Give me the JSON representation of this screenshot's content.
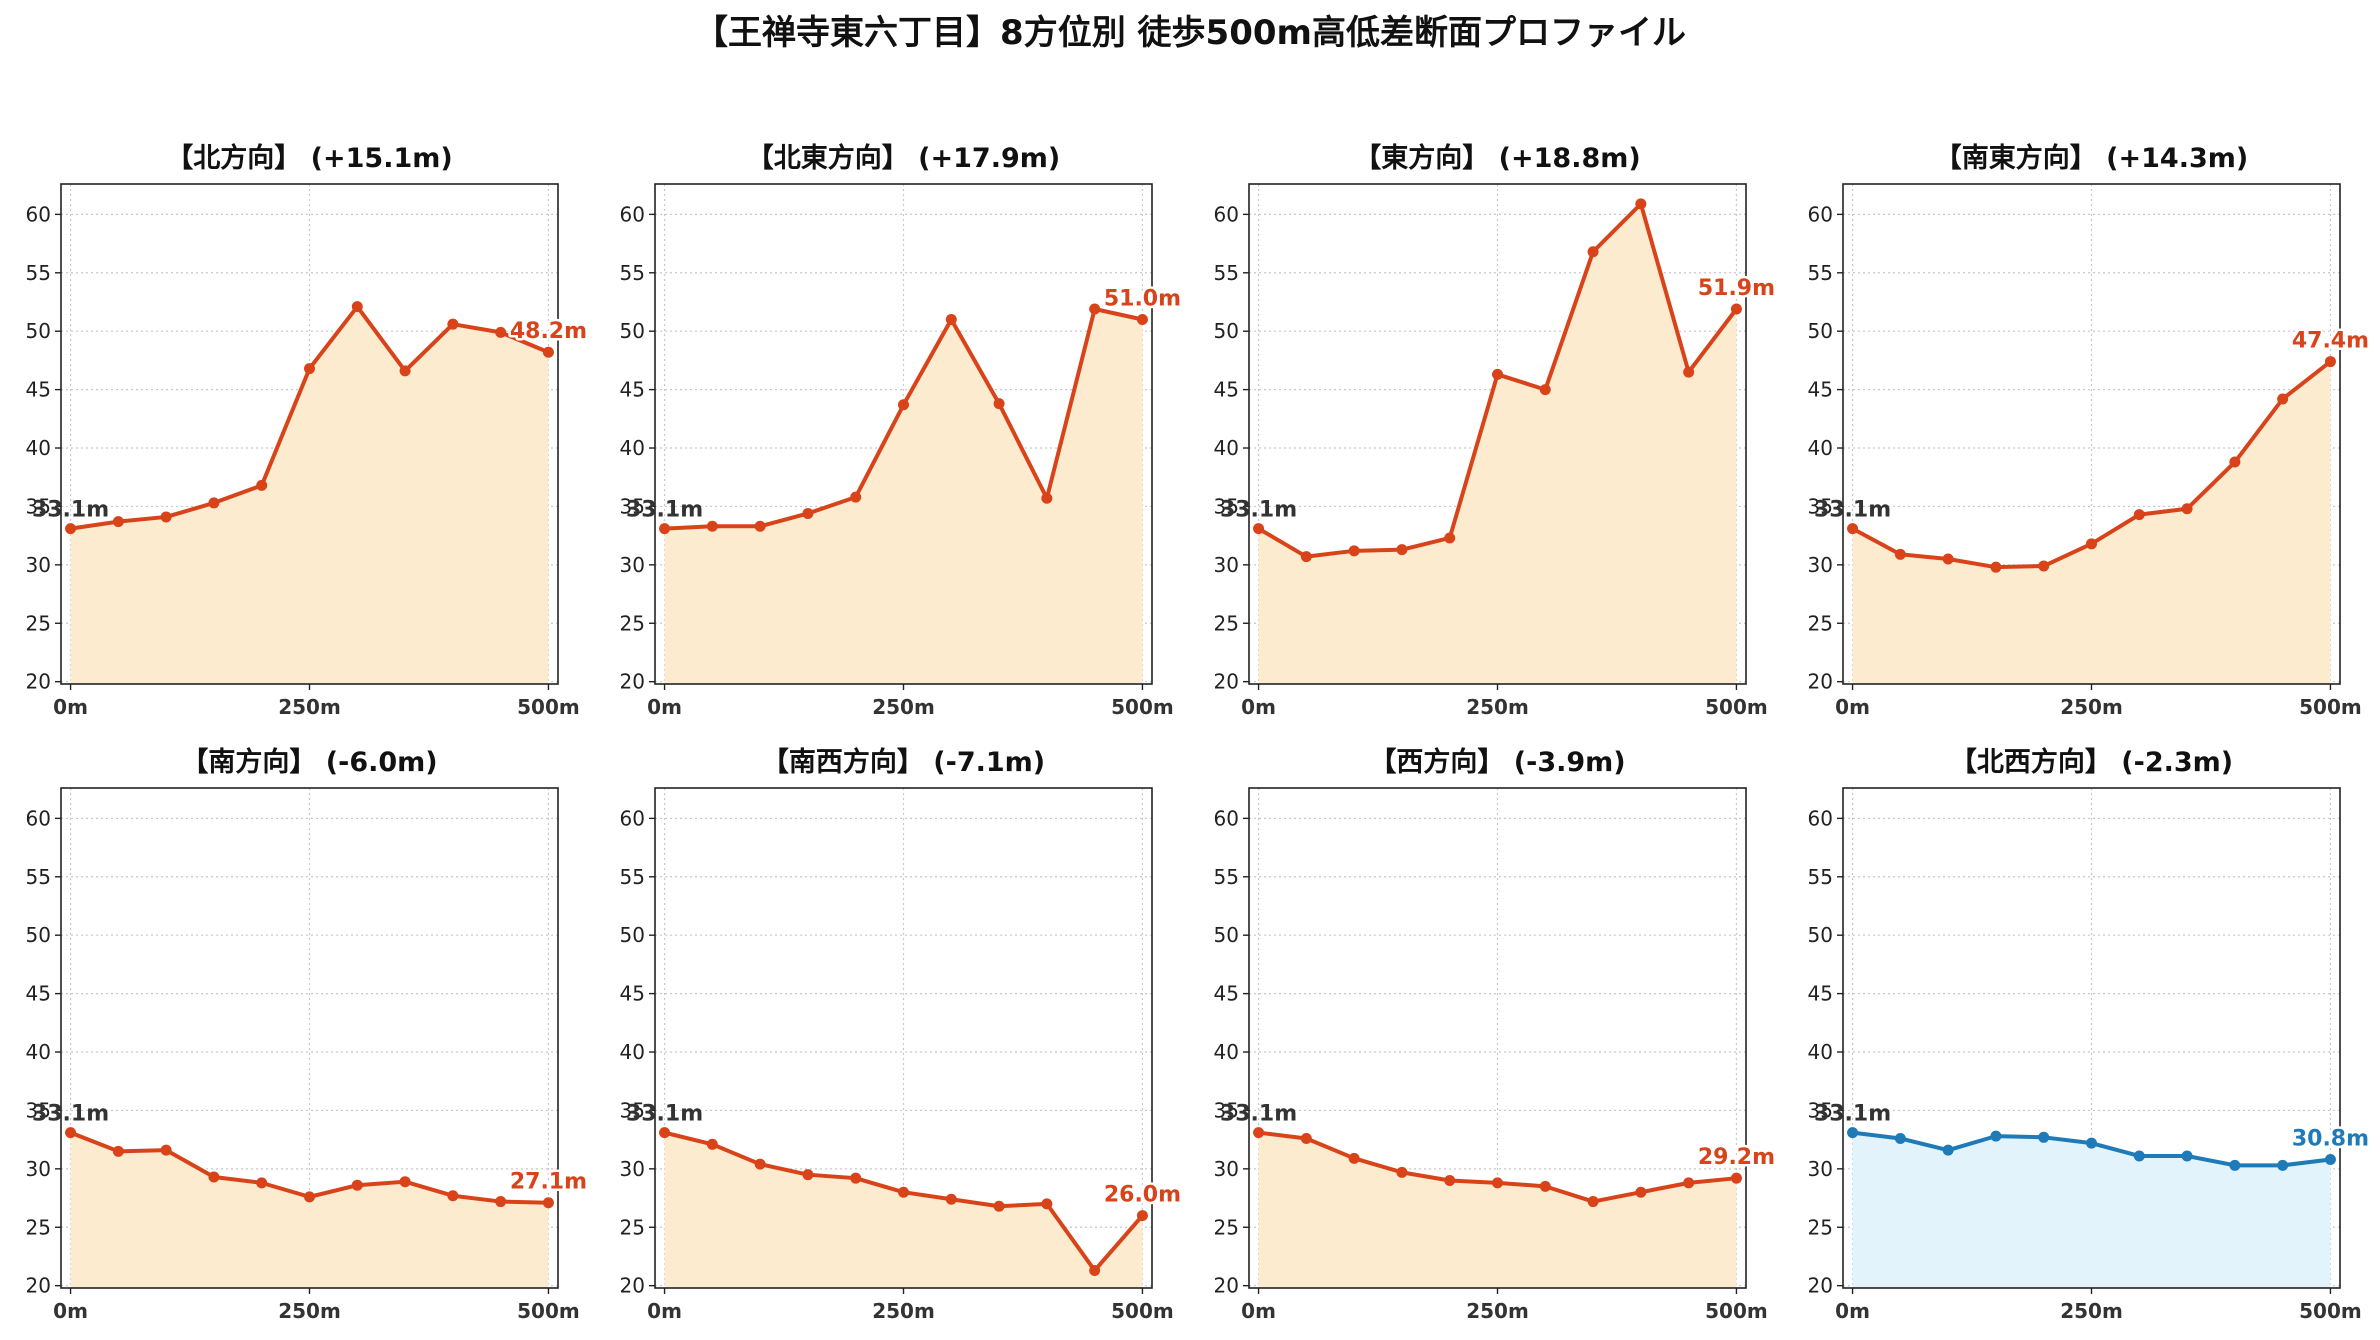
{
  "title": "【王禅寺東六丁目】8方位別 徒歩500m高低差断面プロファイル",
  "colors": {
    "rise_line": "#d9431a",
    "rise_fill": "#fdebd0",
    "flat_line": "#1f7ab8",
    "flat_fill": "#e3f3fb",
    "start_label": "#333333",
    "grid": "#c8c8c8"
  },
  "chart_data": [
    {
      "type": "area",
      "title": "【北方向】 (+15.1m)",
      "start_label": "33.1m",
      "end_label": "48.2m",
      "color_scheme": "warm",
      "x": [
        0,
        50,
        100,
        150,
        200,
        250,
        300,
        350,
        400,
        450,
        500
      ],
      "y": [
        33.1,
        33.7,
        34.1,
        35.3,
        36.8,
        46.8,
        52.1,
        46.6,
        50.6,
        49.9,
        48.2
      ],
      "xticks": [
        "0m",
        "250m",
        "500m"
      ],
      "yticks": [
        20,
        25,
        30,
        35,
        40,
        45,
        50,
        55,
        60
      ],
      "ylim": [
        19.8,
        62.6
      ],
      "xlim": [
        -10,
        510
      ],
      "grid": true
    },
    {
      "type": "area",
      "title": "【北東方向】 (+17.9m)",
      "start_label": "33.1m",
      "end_label": "51.0m",
      "color_scheme": "warm",
      "x": [
        0,
        50,
        100,
        150,
        200,
        250,
        300,
        350,
        400,
        450,
        500
      ],
      "y": [
        33.1,
        33.3,
        33.3,
        34.4,
        35.8,
        43.7,
        51.0,
        43.8,
        35.7,
        51.9,
        51.0
      ],
      "xticks": [
        "0m",
        "250m",
        "500m"
      ],
      "yticks": [
        20,
        25,
        30,
        35,
        40,
        45,
        50,
        55,
        60
      ],
      "ylim": [
        19.8,
        62.6
      ],
      "xlim": [
        -10,
        510
      ],
      "grid": true
    },
    {
      "type": "area",
      "title": "【東方向】 (+18.8m)",
      "start_label": "33.1m",
      "end_label": "51.9m",
      "color_scheme": "warm",
      "x": [
        0,
        50,
        100,
        150,
        200,
        250,
        300,
        350,
        400,
        450,
        500
      ],
      "y": [
        33.1,
        30.7,
        31.2,
        31.3,
        32.3,
        46.3,
        45.0,
        56.8,
        60.9,
        46.5,
        51.9
      ],
      "xticks": [
        "0m",
        "250m",
        "500m"
      ],
      "yticks": [
        20,
        25,
        30,
        35,
        40,
        45,
        50,
        55,
        60
      ],
      "ylim": [
        19.8,
        62.6
      ],
      "xlim": [
        -10,
        510
      ],
      "grid": true
    },
    {
      "type": "area",
      "title": "【南東方向】 (+14.3m)",
      "start_label": "33.1m",
      "end_label": "47.4m",
      "color_scheme": "warm",
      "x": [
        0,
        50,
        100,
        150,
        200,
        250,
        300,
        350,
        400,
        450,
        500
      ],
      "y": [
        33.1,
        30.9,
        30.5,
        29.8,
        29.9,
        31.8,
        34.3,
        34.8,
        38.8,
        44.2,
        47.4
      ],
      "xticks": [
        "0m",
        "250m",
        "500m"
      ],
      "yticks": [
        20,
        25,
        30,
        35,
        40,
        45,
        50,
        55,
        60
      ],
      "ylim": [
        19.8,
        62.6
      ],
      "xlim": [
        -10,
        510
      ],
      "grid": true
    },
    {
      "type": "area",
      "title": "【南方向】 (-6.0m)",
      "start_label": "33.1m",
      "end_label": "27.1m",
      "color_scheme": "warm",
      "x": [
        0,
        50,
        100,
        150,
        200,
        250,
        300,
        350,
        400,
        450,
        500
      ],
      "y": [
        33.1,
        31.5,
        31.6,
        29.3,
        28.8,
        27.6,
        28.6,
        28.9,
        27.7,
        27.2,
        27.1
      ],
      "xticks": [
        "0m",
        "250m",
        "500m"
      ],
      "yticks": [
        20,
        25,
        30,
        35,
        40,
        45,
        50,
        55,
        60
      ],
      "ylim": [
        19.8,
        62.6
      ],
      "xlim": [
        -10,
        510
      ],
      "grid": true
    },
    {
      "type": "area",
      "title": "【南西方向】 (-7.1m)",
      "start_label": "33.1m",
      "end_label": "26.0m",
      "color_scheme": "warm",
      "x": [
        0,
        50,
        100,
        150,
        200,
        250,
        300,
        350,
        400,
        450,
        500
      ],
      "y": [
        33.1,
        32.1,
        30.4,
        29.5,
        29.2,
        28.0,
        27.4,
        26.8,
        27.0,
        21.3,
        26.0
      ],
      "xticks": [
        "0m",
        "250m",
        "500m"
      ],
      "yticks": [
        20,
        25,
        30,
        35,
        40,
        45,
        50,
        55,
        60
      ],
      "ylim": [
        19.8,
        62.6
      ],
      "xlim": [
        -10,
        510
      ],
      "grid": true
    },
    {
      "type": "area",
      "title": "【西方向】 (-3.9m)",
      "start_label": "33.1m",
      "end_label": "29.2m",
      "color_scheme": "warm",
      "x": [
        0,
        50,
        100,
        150,
        200,
        250,
        300,
        350,
        400,
        450,
        500
      ],
      "y": [
        33.1,
        32.6,
        30.9,
        29.7,
        29.0,
        28.8,
        28.5,
        27.2,
        28.0,
        28.8,
        29.2
      ],
      "xticks": [
        "0m",
        "250m",
        "500m"
      ],
      "yticks": [
        20,
        25,
        30,
        35,
        40,
        45,
        50,
        55,
        60
      ],
      "ylim": [
        19.8,
        62.6
      ],
      "xlim": [
        -10,
        510
      ],
      "grid": true
    },
    {
      "type": "area",
      "title": "【北西方向】 (-2.3m)",
      "start_label": "33.1m",
      "end_label": "30.8m",
      "color_scheme": "cool",
      "x": [
        0,
        50,
        100,
        150,
        200,
        250,
        300,
        350,
        400,
        450,
        500
      ],
      "y": [
        33.1,
        32.6,
        31.6,
        32.8,
        32.7,
        32.2,
        31.1,
        31.1,
        30.3,
        30.3,
        30.8
      ],
      "xticks": [
        "0m",
        "250m",
        "500m"
      ],
      "yticks": [
        20,
        25,
        30,
        35,
        40,
        45,
        50,
        55,
        60
      ],
      "ylim": [
        19.8,
        62.6
      ],
      "xlim": [
        -10,
        510
      ],
      "grid": true
    }
  ]
}
